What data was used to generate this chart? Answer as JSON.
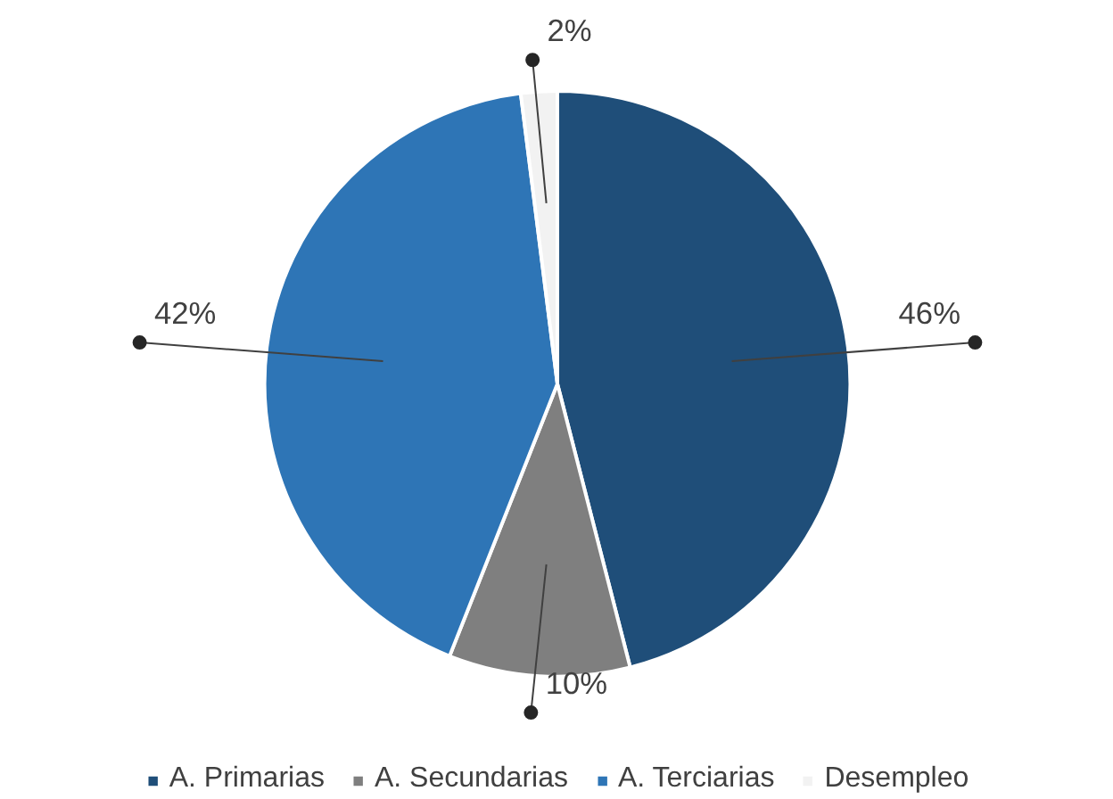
{
  "chart_data": {
    "type": "pie",
    "categories": [
      "A. Primarias",
      "A. Secundarias",
      "A. Terciarias",
      "Desempleo"
    ],
    "values": [
      46,
      10,
      42,
      2
    ],
    "colors": [
      "#1f4e79",
      "#7f7f7f",
      "#2e75b6",
      "#f2f2f2"
    ],
    "value_labels": [
      "46%",
      "10%",
      "42%",
      "2%"
    ],
    "legend": "bottom"
  }
}
